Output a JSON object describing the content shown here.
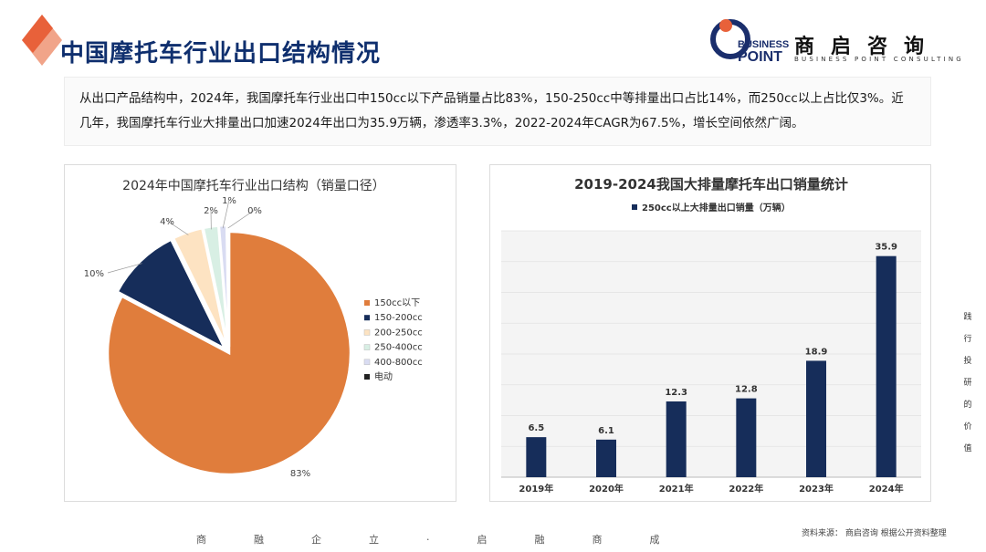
{
  "page": {
    "title": "中国摩托车行业出口结构情况",
    "intro": "从出口产品结构中，2024年，我国摩托车行业出口中150cc以下产品销量占比83%，150-250cc中等排量出口占比14%，而250cc以上占比仅3%。近几年，我国摩托车行业大排量出口加速2024年出口为35.9万辆，渗透率3.3%，2022-2024年CAGR为67.5%，增长空间依然广阔。",
    "side_text": "践行投研的价值",
    "footer_motto": "商融企立·启融商成",
    "source": "资料来源： 商启咨询 根据公开资料整理"
  },
  "logo": {
    "business": "BUSINESS",
    "point": "POINT",
    "cn": "商启咨询",
    "en": "BUSINESS POINT CONSULTING"
  },
  "colors": {
    "title": "#0f2f6e",
    "accent_orange": "#e8613a",
    "navy": "#162d5a"
  },
  "chart_data": [
    {
      "type": "pie",
      "title": "2024年中国摩托车行业出口结构（销量口径）",
      "legend_position": "right",
      "slices": [
        {
          "label": "150cc以下",
          "value": 83,
          "display": "83%",
          "color": "#e07d3c"
        },
        {
          "label": "150-200cc",
          "value": 10,
          "display": "10%",
          "color": "#162d5a"
        },
        {
          "label": "200-250cc",
          "value": 4,
          "display": "4%",
          "color": "#fde3c2"
        },
        {
          "label": "250-400cc",
          "value": 2,
          "display": "2%",
          "color": "#d8efe4"
        },
        {
          "label": "400-800cc",
          "value": 1,
          "display": "1%",
          "color": "#d9dcf2"
        },
        {
          "label": "电动",
          "value": 0.3,
          "display": "0%",
          "color": "#222222"
        }
      ]
    },
    {
      "type": "bar",
      "title": "2019-2024我国大排量摩托车出口销量统计",
      "legend_position": "top",
      "categories": [
        "2019年",
        "2020年",
        "2021年",
        "2022年",
        "2023年",
        "2024年"
      ],
      "series": [
        {
          "name": "250cc以上大排量出口销量（万辆）",
          "values": [
            6.5,
            6.1,
            12.3,
            12.8,
            18.9,
            35.9
          ],
          "color": "#162d5a"
        }
      ],
      "ylim": [
        0,
        40
      ],
      "grid": true
    }
  ]
}
